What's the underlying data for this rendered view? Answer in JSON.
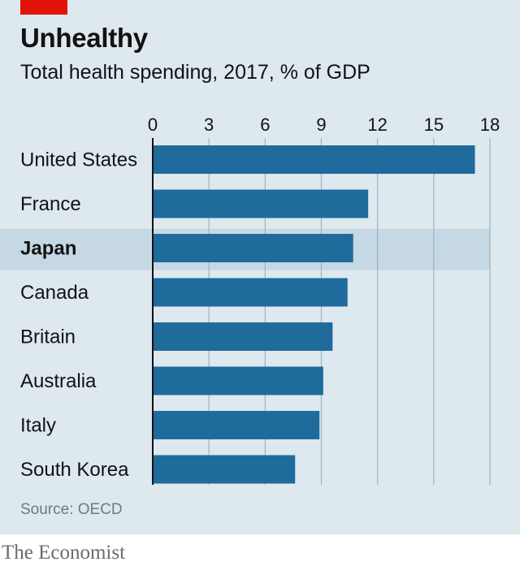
{
  "header": {
    "title": "Unhealthy",
    "subtitle": "Total health spending, 2017, % of GDP"
  },
  "footer": {
    "source": "Source: OECD",
    "brand": "The Economist"
  },
  "colors": {
    "background": "#dde8ef",
    "bar": "#1f6b9c",
    "highlight_band": "#c5d8e4",
    "brand_red": "#e3120b",
    "gridline": "#9fb3c0"
  },
  "chart_data": {
    "type": "bar",
    "orientation": "horizontal",
    "title": "Unhealthy",
    "subtitle": "Total health spending, 2017, % of GDP",
    "categories": [
      "United States",
      "France",
      "Japan",
      "Canada",
      "Britain",
      "Australia",
      "Italy",
      "South Korea"
    ],
    "values": [
      17.2,
      11.5,
      10.7,
      10.4,
      9.6,
      9.1,
      8.9,
      7.6
    ],
    "highlight": "Japan",
    "xlim": [
      0,
      18
    ],
    "ticks": [
      0,
      3,
      6,
      9,
      12,
      15,
      18
    ],
    "axis_position": "top",
    "grid": true,
    "xlabel": "",
    "ylabel": ""
  }
}
